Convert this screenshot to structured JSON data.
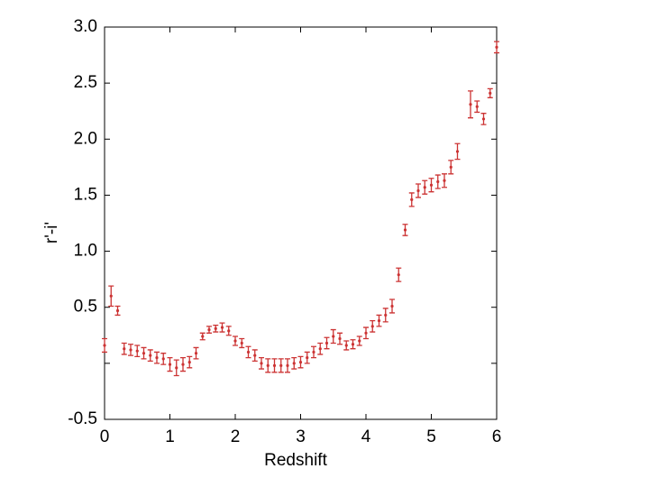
{
  "chart_data": {
    "type": "errorbar",
    "x_label": "Redshift",
    "y_label": "r'-i'",
    "xlim": [
      0,
      6
    ],
    "ylim": [
      -0.5,
      3.0
    ],
    "xticks": [
      0,
      1,
      2,
      3,
      4,
      5,
      6
    ],
    "yticks": [
      {
        "value": -0.5,
        "label": "-0.5"
      },
      {
        "value": 0,
        "label": null
      },
      {
        "value": 0.5,
        "label": "0.5"
      },
      {
        "value": 1.0,
        "label": "1.0"
      },
      {
        "value": 1.5,
        "label": "1.5"
      },
      {
        "value": 2.0,
        "label": "2.0"
      },
      {
        "value": 2.5,
        "label": "2.5"
      },
      {
        "value": 3.0,
        "label": "3.0"
      }
    ],
    "color": "#cc3333",
    "x": [
      0.0,
      0.1,
      0.2,
      0.3,
      0.4,
      0.5,
      0.6,
      0.7,
      0.8,
      0.9,
      1.0,
      1.1,
      1.2,
      1.3,
      1.4,
      1.5,
      1.6,
      1.7,
      1.8,
      1.9,
      2.0,
      2.1,
      2.2,
      2.3,
      2.4,
      2.5,
      2.6,
      2.7,
      2.8,
      2.9,
      3.0,
      3.1,
      3.2,
      3.3,
      3.4,
      3.5,
      3.6,
      3.7,
      3.8,
      3.9,
      4.0,
      4.1,
      4.2,
      4.3,
      4.4,
      4.5,
      4.6,
      4.7,
      4.8,
      4.9,
      5.0,
      5.1,
      5.2,
      5.3,
      5.4,
      5.6,
      5.7,
      5.8,
      5.9,
      6.0
    ],
    "values": [
      0.16,
      0.6,
      0.47,
      0.13,
      0.12,
      0.11,
      0.09,
      0.07,
      0.05,
      0.04,
      -0.01,
      -0.04,
      -0.01,
      0.01,
      0.09,
      0.24,
      0.3,
      0.31,
      0.32,
      0.29,
      0.2,
      0.18,
      0.1,
      0.07,
      0.0,
      -0.02,
      -0.02,
      -0.02,
      -0.02,
      0.0,
      0.01,
      0.05,
      0.1,
      0.13,
      0.18,
      0.24,
      0.22,
      0.16,
      0.17,
      0.2,
      0.27,
      0.33,
      0.38,
      0.43,
      0.51,
      0.79,
      1.19,
      1.46,
      1.54,
      1.57,
      1.59,
      1.62,
      1.63,
      1.75,
      1.89,
      2.31,
      2.29,
      2.18,
      2.41,
      2.82
    ],
    "errors": [
      0.06,
      0.09,
      0.04,
      0.05,
      0.05,
      0.05,
      0.05,
      0.05,
      0.05,
      0.05,
      0.06,
      0.07,
      0.06,
      0.05,
      0.05,
      0.03,
      0.03,
      0.03,
      0.04,
      0.04,
      0.04,
      0.04,
      0.05,
      0.05,
      0.05,
      0.06,
      0.06,
      0.06,
      0.06,
      0.05,
      0.05,
      0.05,
      0.05,
      0.05,
      0.05,
      0.06,
      0.05,
      0.04,
      0.04,
      0.04,
      0.05,
      0.05,
      0.05,
      0.06,
      0.06,
      0.06,
      0.05,
      0.06,
      0.06,
      0.06,
      0.06,
      0.06,
      0.06,
      0.06,
      0.07,
      0.12,
      0.05,
      0.05,
      0.04,
      0.05
    ]
  }
}
